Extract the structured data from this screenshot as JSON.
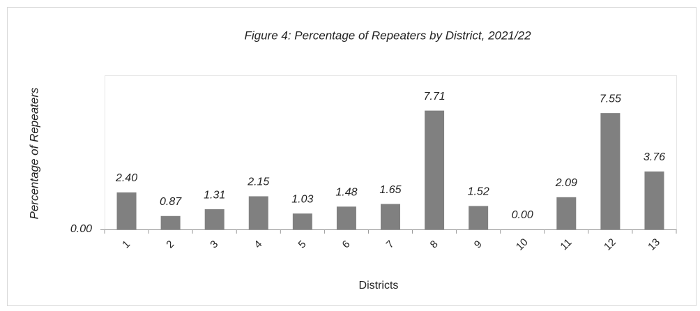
{
  "chart_data": {
    "type": "bar",
    "title": "Figure 4: Percentage of Repeaters by District, 2021/22",
    "x_label": "Districts",
    "y_label": "Percentage of Repeaters",
    "categories": [
      "1",
      "2",
      "3",
      "4",
      "5",
      "6",
      "7",
      "8",
      "9",
      "10",
      "11",
      "12",
      "13"
    ],
    "values": [
      2.4,
      0.87,
      1.31,
      2.15,
      1.03,
      1.48,
      1.65,
      7.71,
      1.52,
      0,
      2.09,
      7.55,
      3.76
    ],
    "value_labels": [
      "2.40",
      "0.87",
      "1.31",
      "2.15",
      "1.03",
      "1.48",
      "1.65",
      "7.71",
      "1.52",
      "0.00",
      "2.09",
      "7.55",
      "3.76"
    ],
    "color": "#808080",
    "ylim": [
      0,
      10
    ],
    "yticks": [
      {
        "value": 0,
        "label": "0.00"
      }
    ],
    "grid": false
  }
}
